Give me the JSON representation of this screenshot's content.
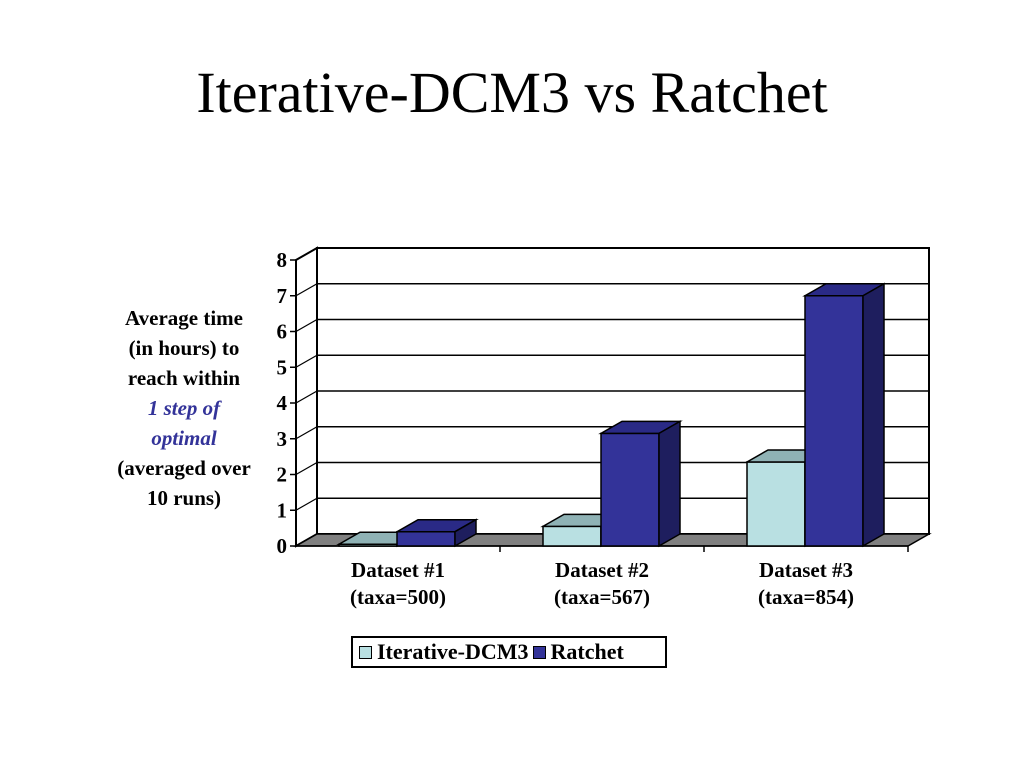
{
  "slide": {
    "title": "Iterative-DCM3 vs Ratchet"
  },
  "ylabel": {
    "lines": [
      "Average time",
      "(in hours) to",
      "reach within"
    ],
    "highlight": [
      "1 step of",
      "optimal"
    ],
    "tail": [
      "(averaged over",
      "10 runs)"
    ]
  },
  "chart_data": {
    "type": "bar",
    "style": "3d-clustered-column",
    "categories": [
      [
        "Dataset #1",
        "(taxa=500)"
      ],
      [
        "Dataset #2",
        "(taxa=567)"
      ],
      [
        "Dataset #3",
        "(taxa=854)"
      ]
    ],
    "series": [
      {
        "name": "Iterative-DCM3",
        "values": [
          0.05,
          0.55,
          2.35
        ],
        "color": "#B9E0E2",
        "top_color": "#8FB2B5",
        "side_color": "#6F9396"
      },
      {
        "name": "Ratchet",
        "values": [
          0.4,
          3.15,
          7.0
        ],
        "color": "#333399",
        "top_color": "#2A2A86",
        "side_color": "#1E1E5E"
      }
    ],
    "ylim": [
      0,
      8
    ],
    "yticks": [
      0,
      1,
      2,
      3,
      4,
      5,
      6,
      7,
      8
    ],
    "grid": true,
    "legend": "bottom"
  }
}
